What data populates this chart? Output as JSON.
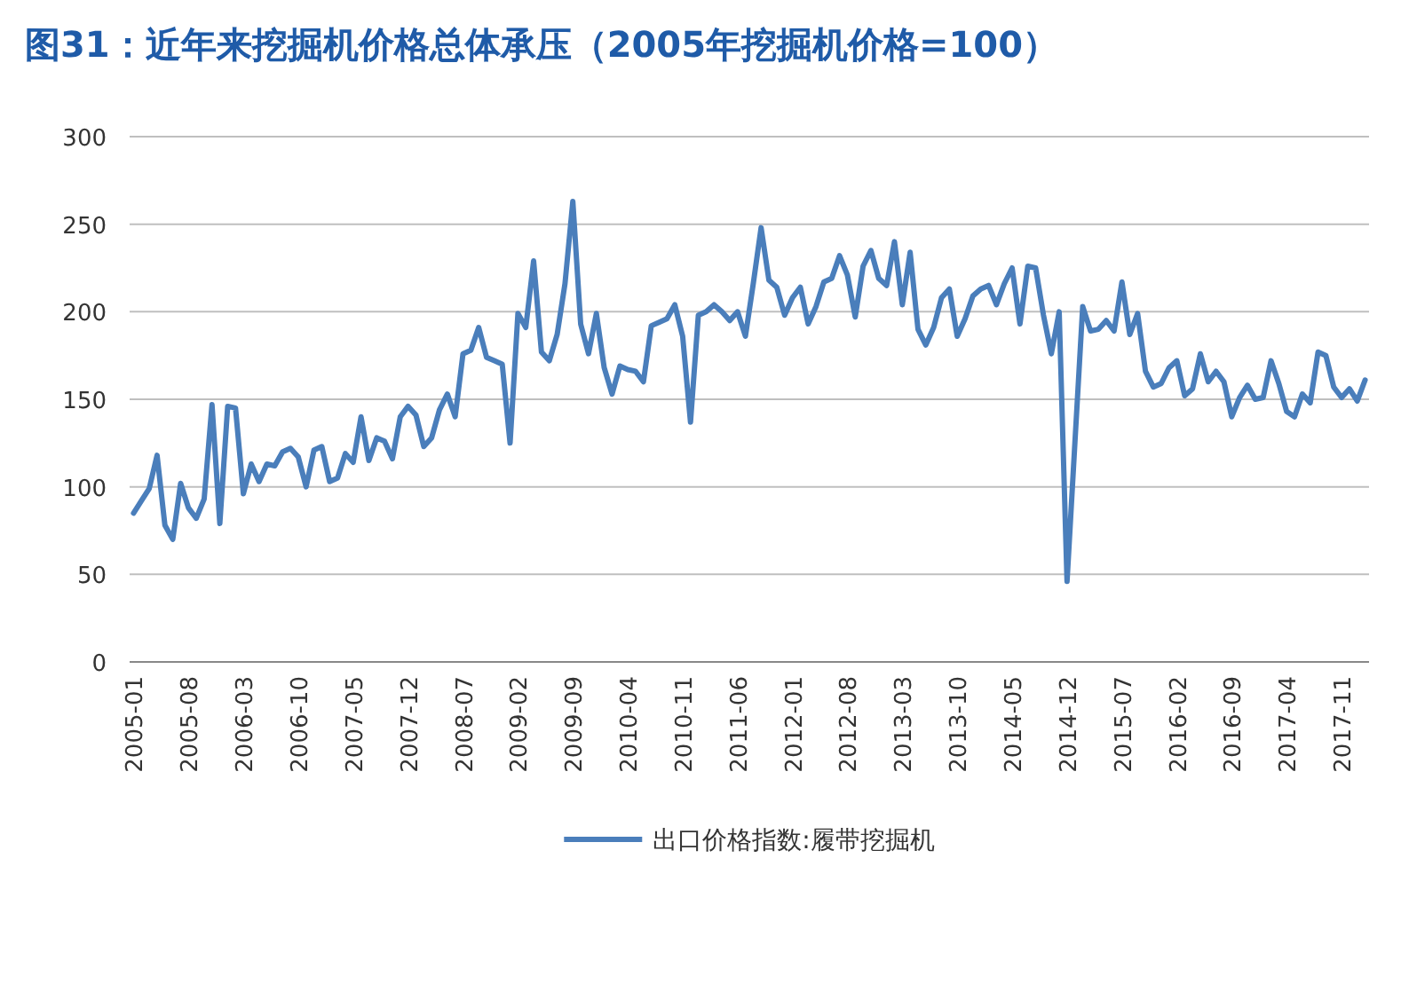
{
  "chart_data": {
    "type": "line",
    "title": "图31：近年来挖掘机价格总体承压（2005年挖掘机价格=100）",
    "categories": [
      "2005-01",
      null,
      null,
      null,
      null,
      null,
      null,
      "2005-08",
      null,
      null,
      null,
      null,
      null,
      null,
      "2006-03",
      null,
      null,
      null,
      null,
      null,
      null,
      "2006-10",
      null,
      null,
      null,
      null,
      null,
      null,
      "2007-05",
      null,
      null,
      null,
      null,
      null,
      null,
      "2007-12",
      null,
      null,
      null,
      null,
      null,
      null,
      "2008-07",
      null,
      null,
      null,
      null,
      null,
      null,
      "2009-02",
      null,
      null,
      null,
      null,
      null,
      null,
      "2009-09",
      null,
      null,
      null,
      null,
      null,
      null,
      "2010-04",
      null,
      null,
      null,
      null,
      null,
      null,
      "2010-11",
      null,
      null,
      null,
      null,
      null,
      null,
      "2011-06",
      null,
      null,
      null,
      null,
      null,
      null,
      "2012-01",
      null,
      null,
      null,
      null,
      null,
      null,
      "2012-08",
      null,
      null,
      null,
      null,
      null,
      null,
      "2013-03",
      null,
      null,
      null,
      null,
      null,
      null,
      "2013-10",
      null,
      null,
      null,
      null,
      null,
      null,
      "2014-05",
      null,
      null,
      null,
      null,
      null,
      null,
      "2014-12",
      null,
      null,
      null,
      null,
      null,
      null,
      "2015-07",
      null,
      null,
      null,
      null,
      null,
      null,
      "2016-02",
      null,
      null,
      null,
      null,
      null,
      null,
      "2016-09",
      null,
      null,
      null,
      null,
      null,
      null,
      "2017-04",
      null,
      null,
      null,
      null,
      null,
      null,
      "2017-11",
      null,
      null,
      null
    ],
    "series": [
      {
        "name": "出口价格指数:履带挖掘机",
        "color": "#4a7ebb",
        "values": [
          85,
          92,
          99,
          118,
          78,
          70,
          102,
          88,
          82,
          93,
          147,
          79,
          146,
          145,
          96,
          113,
          103,
          113,
          112,
          120,
          122,
          117,
          100,
          121,
          123,
          103,
          105,
          119,
          114,
          140,
          115,
          128,
          126,
          116,
          140,
          146,
          141,
          123,
          128,
          144,
          153,
          140,
          176,
          178,
          191,
          174,
          172,
          170,
          125,
          199,
          191,
          229,
          177,
          172,
          187,
          216,
          263,
          193,
          176,
          199,
          168,
          153,
          169,
          167,
          166,
          160,
          192,
          194,
          196,
          204,
          186,
          137,
          198,
          200,
          204,
          200,
          195,
          200,
          186,
          216,
          248,
          218,
          214,
          198,
          208,
          214,
          193,
          203,
          217,
          219,
          232,
          221,
          197,
          226,
          235,
          219,
          215,
          240,
          204,
          234,
          190,
          181,
          191,
          208,
          213,
          186,
          196,
          209,
          213,
          215,
          204,
          216,
          225,
          193,
          226,
          225,
          198,
          176,
          200,
          46,
          125,
          203,
          189,
          190,
          195,
          189,
          217,
          187,
          199,
          166,
          157,
          159,
          168,
          172,
          152,
          156,
          176,
          160,
          166,
          160,
          140,
          151,
          158,
          150,
          151,
          172,
          159,
          143,
          140,
          153,
          148,
          177,
          175,
          157,
          151,
          156,
          149,
          161
        ]
      }
    ],
    "ylim": [
      0,
      300
    ],
    "yticks": [
      0,
      50,
      100,
      150,
      200,
      250,
      300
    ],
    "grid": "y",
    "legend": "bottom",
    "marker": "none",
    "line_style": "solid"
  }
}
